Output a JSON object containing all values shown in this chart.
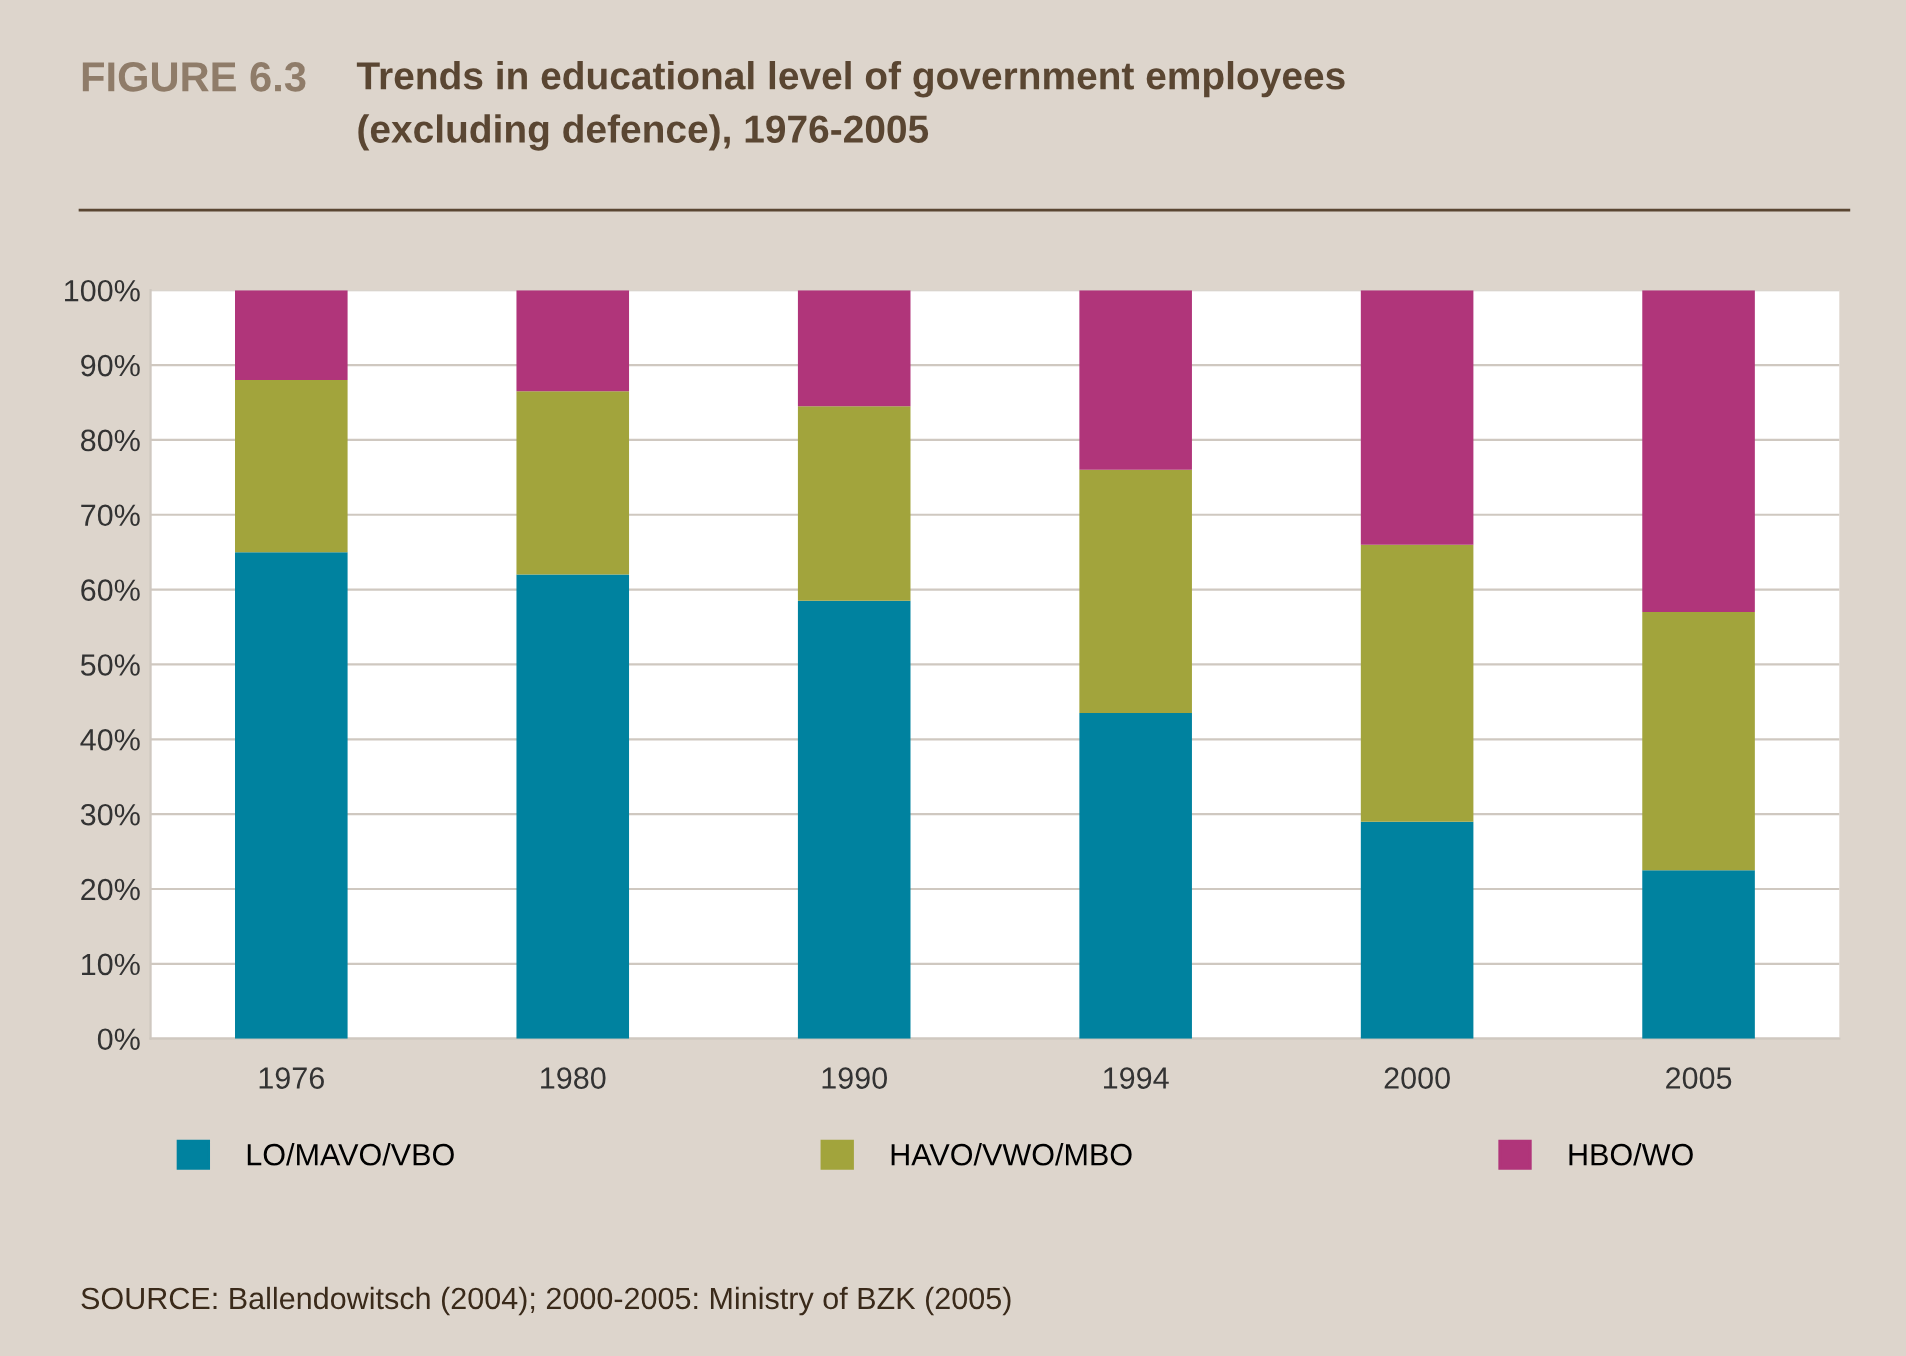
{
  "chart_data": {
    "type": "bar",
    "stacked": true,
    "title": "Trends in educational level of government employees\n(excluding defence), 1976-2005",
    "annotations": [
      "FIGURE 6.3",
      "SOURCE: Ballendowitsch (2004); 2000-2005: Ministry of BZK (2005)"
    ],
    "categories": [
      "1976",
      "1980",
      "1990",
      "1994",
      "2000",
      "2005"
    ],
    "series": [
      {
        "name": "LO/MAVO/VBO",
        "color": "#00829f",
        "values": [
          65,
          62,
          58.5,
          43.5,
          29,
          22.5
        ]
      },
      {
        "name": "HAVO/VWO/MBO",
        "color": "#a2a43c",
        "values": [
          23,
          24.5,
          26,
          32.5,
          37,
          34.5
        ]
      },
      {
        "name": "HBO/WO",
        "color": "#b0357a",
        "values": [
          12,
          13.5,
          15.5,
          24,
          34,
          43
        ]
      }
    ],
    "ylim": [
      0,
      100
    ],
    "yticks": [
      {
        "value": 0,
        "label": "0%"
      },
      {
        "value": 10,
        "label": "10%"
      },
      {
        "value": 20,
        "label": "20%"
      },
      {
        "value": 30,
        "label": "30%"
      },
      {
        "value": 40,
        "label": "40%"
      },
      {
        "value": 50,
        "label": "50%"
      },
      {
        "value": 60,
        "label": "60%"
      },
      {
        "value": 70,
        "label": "70%"
      },
      {
        "value": 80,
        "label": "80%"
      },
      {
        "value": 90,
        "label": "90%"
      },
      {
        "value": 100,
        "label": "100%"
      }
    ],
    "grid": "y",
    "legend": "bottom"
  }
}
